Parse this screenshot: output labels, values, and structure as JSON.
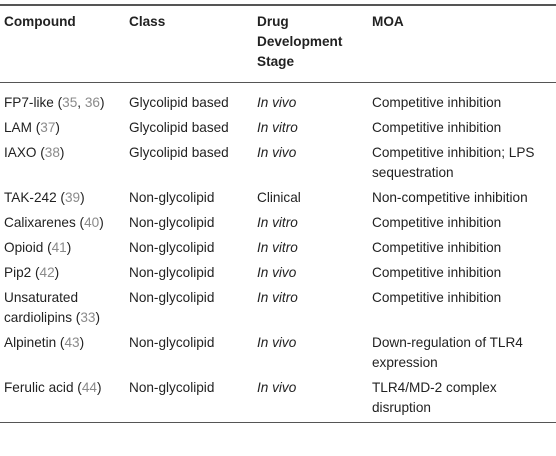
{
  "table": {
    "headers": [
      "Compound",
      "Class",
      "Drug Development Stage",
      "MOA"
    ],
    "rows": [
      {
        "compound": "FP7-like",
        "refs": [
          "35",
          "36"
        ],
        "class": "Glycolipid based",
        "stage": "In vivo",
        "stage_italic": true,
        "moa": "Competitive inhibition"
      },
      {
        "compound": "LAM",
        "refs": [
          "37"
        ],
        "class": "Glycolipid based",
        "stage": "In vitro",
        "stage_italic": true,
        "moa": "Competitive inhibition"
      },
      {
        "compound": "IAXO",
        "refs": [
          "38"
        ],
        "class": "Glycolipid based",
        "stage": "In vivo",
        "stage_italic": true,
        "moa": "Competitive inhibition; LPS sequestration"
      },
      {
        "compound": "TAK-242",
        "refs": [
          "39"
        ],
        "class": "Non-glycolipid",
        "stage": "Clinical",
        "stage_italic": false,
        "moa": "Non-competitive inhibition"
      },
      {
        "compound": "Calixarenes",
        "refs": [
          "40"
        ],
        "class": "Non-glycolipid",
        "stage": "In vitro",
        "stage_italic": true,
        "moa": "Competitive inhibition"
      },
      {
        "compound": "Opioid",
        "refs": [
          "41"
        ],
        "class": "Non-glycolipid",
        "stage": "In vitro",
        "stage_italic": true,
        "moa": "Competitive inhibition"
      },
      {
        "compound": "Pip2",
        "refs": [
          "42"
        ],
        "class": "Non-glycolipid",
        "stage": "In vivo",
        "stage_italic": true,
        "moa": "Competitive inhibition"
      },
      {
        "compound": "Unsaturated cardiolipins",
        "refs": [
          "33"
        ],
        "class": "Non-glycolipid",
        "stage": "In vitro",
        "stage_italic": true,
        "moa": "Competitive inhibition"
      },
      {
        "compound": "Alpinetin",
        "refs": [
          "43"
        ],
        "class": "Non-glycolipid",
        "stage": "In vivo",
        "stage_italic": true,
        "moa": "Down-regulation of TLR4 expression"
      },
      {
        "compound": "Ferulic acid",
        "refs": [
          "44"
        ],
        "class": "Non-glycolipid",
        "stage": "In vivo",
        "stage_italic": true,
        "moa": "TLR4/MD-2 complex disruption"
      }
    ]
  },
  "colors": {
    "text": "#222222",
    "reference_link": "#8a8a8a",
    "rule": "#555555"
  }
}
